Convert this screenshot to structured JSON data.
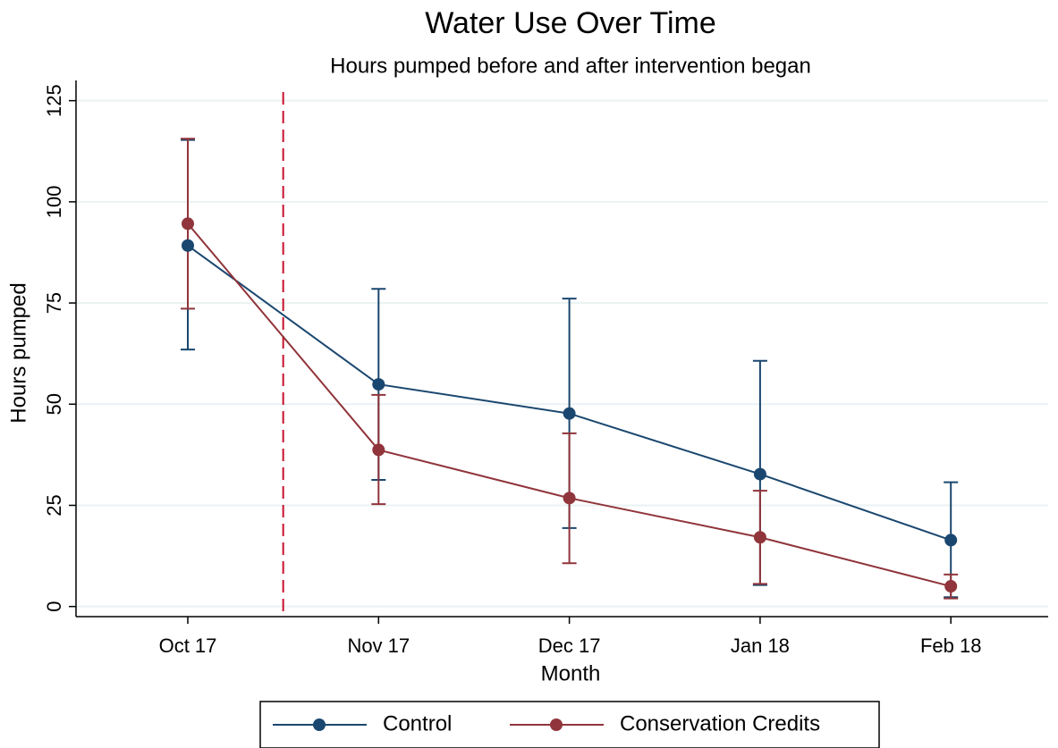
{
  "chart_data": {
    "type": "line",
    "title": "Water Use Over Time",
    "subtitle": "Hours pumped before and after intervention began",
    "x_label": "Month",
    "y_label": "Hours pumped",
    "categories": [
      "Oct 17",
      "Nov 17",
      "Dec 17",
      "Jan 18",
      "Feb 18"
    ],
    "series": [
      {
        "name": "Control",
        "color": "#1a476f",
        "values": [
          89.2,
          54.9,
          47.7,
          32.7,
          16.4
        ],
        "upper": [
          115.3,
          78.5,
          76.1,
          60.7,
          30.7
        ],
        "lower": [
          63.5,
          31.3,
          19.4,
          5.3,
          2.3
        ]
      },
      {
        "name": "Conservation Credits",
        "color": "#90353b",
        "values": [
          94.6,
          38.7,
          26.8,
          17.1,
          5.0
        ],
        "upper": [
          115.6,
          52.3,
          42.8,
          28.6,
          7.9
        ],
        "lower": [
          73.6,
          25.3,
          10.7,
          5.6,
          2.0
        ]
      }
    ],
    "vline": {
      "x": 0.5,
      "color": "#c8102e"
    },
    "ylim": [
      -2.5,
      130
    ],
    "yticks": [
      0,
      25,
      50,
      75,
      100,
      125
    ],
    "grid": true,
    "legend": "bottom"
  }
}
